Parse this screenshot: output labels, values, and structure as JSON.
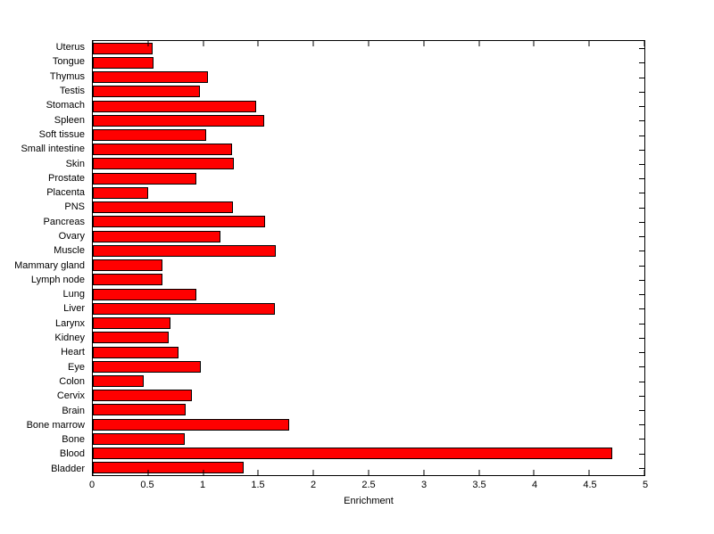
{
  "chart_data": {
    "type": "bar",
    "orientation": "horizontal",
    "xlabel": "Enrichment",
    "categories_top_to_bottom": [
      "Uterus",
      "Tongue",
      "Thymus",
      "Testis",
      "Stomach",
      "Spleen",
      "Soft tissue",
      "Small intestine",
      "Skin",
      "Prostate",
      "Placenta",
      "PNS",
      "Pancreas",
      "Ovary",
      "Muscle",
      "Mammary gland",
      "Lymph node",
      "Lung",
      "Liver",
      "Larynx",
      "Kidney",
      "Heart",
      "Eye",
      "Colon",
      "Cervix",
      "Brain",
      "Bone marrow",
      "Bone",
      "Blood",
      "Bladder"
    ],
    "values_top_to_bottom": [
      0.54,
      0.55,
      1.04,
      0.97,
      1.48,
      1.55,
      1.03,
      1.26,
      1.28,
      0.94,
      0.5,
      1.27,
      1.56,
      1.16,
      1.66,
      0.63,
      0.63,
      0.94,
      1.65,
      0.7,
      0.69,
      0.78,
      0.98,
      0.46,
      0.9,
      0.84,
      1.78,
      0.83,
      4.71,
      1.37
    ],
    "xlim": [
      0,
      5
    ],
    "xticks": [
      0,
      0.5,
      1,
      1.5,
      2,
      2.5,
      3,
      3.5,
      4,
      4.5,
      5
    ],
    "xtick_labels": [
      "0",
      "0.5",
      "1",
      "1.5",
      "2",
      "2.5",
      "3",
      "3.5",
      "4",
      "4.5",
      "5"
    ],
    "bar_color": "#ff0000",
    "bar_edge_color": "#000000",
    "axis_color": "#000000",
    "background": "#ffffff",
    "grid": false,
    "tick_direction": "in",
    "box": true
  }
}
